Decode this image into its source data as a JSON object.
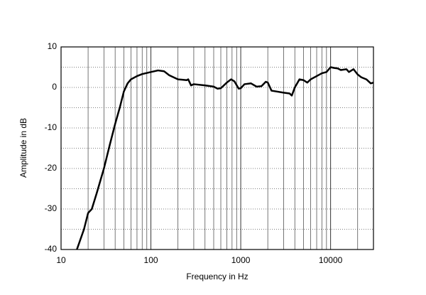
{
  "chart_data": {
    "type": "line",
    "x_label": "Frequency in Hz",
    "y_label": "Amplitude in dB",
    "log_x": true,
    "grid": true,
    "color": "#000000",
    "xlim": [
      10,
      30000
    ],
    "xticks": [
      10,
      100,
      1000,
      10000
    ],
    "x_minor_ticks": [
      20,
      30,
      40,
      50,
      60,
      70,
      80,
      90,
      200,
      300,
      400,
      500,
      600,
      700,
      800,
      900,
      2000,
      3000,
      4000,
      5000,
      6000,
      7000,
      8000,
      9000,
      20000
    ],
    "ylim": [
      -40,
      10
    ],
    "yticks": [
      -40,
      -30,
      -20,
      -10,
      0,
      10
    ],
    "y_minor_ticks": [
      -35,
      -25,
      -15,
      -5,
      5
    ],
    "x": [
      15,
      18,
      20,
      22,
      25,
      30,
      35,
      40,
      45,
      50,
      55,
      60,
      70,
      80,
      100,
      120,
      140,
      160,
      200,
      250,
      260,
      280,
      300,
      400,
      500,
      550,
      600,
      700,
      780,
      850,
      950,
      1000,
      1100,
      1300,
      1500,
      1700,
      1900,
      2000,
      2200,
      2500,
      3000,
      3500,
      3700,
      4000,
      4500,
      5000,
      5500,
      6000,
      7000,
      8000,
      9000,
      10000,
      11000,
      12000,
      13000,
      15000,
      16000,
      18000,
      20000,
      22000,
      25000,
      28000,
      30000
    ],
    "values": [
      -40,
      -35,
      -31,
      -30,
      -26,
      -20,
      -14,
      -9,
      -5,
      -1,
      1,
      2,
      2.8,
      3.3,
      3.8,
      4.2,
      4,
      3,
      2,
      1.8,
      2,
      0.5,
      0.8,
      0.5,
      0.2,
      -0.3,
      -0.2,
      1.2,
      2,
      1.5,
      -0.3,
      -0.2,
      0.8,
      1,
      0.2,
      0.3,
      1.4,
      1.2,
      -0.8,
      -1,
      -1.3,
      -1.5,
      -2,
      0,
      2,
      1.8,
      1.2,
      2,
      2.8,
      3.5,
      3.8,
      5,
      4.8,
      4.7,
      4.3,
      4.5,
      3.8,
      4.5,
      3.2,
      2.5,
      2,
      1,
      1.2
    ]
  }
}
